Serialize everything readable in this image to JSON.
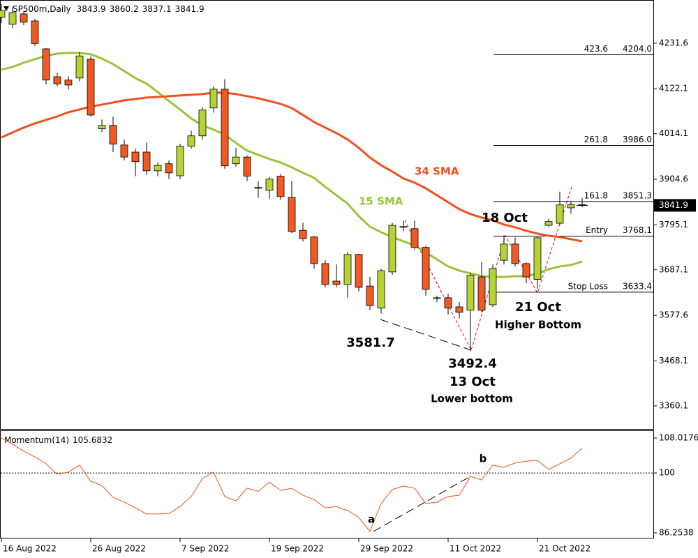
{
  "chart_data": {
    "type": "candlestick",
    "symbol": "SP500m,Daily",
    "categories": [
      "16 Aug 2022",
      null,
      null,
      null,
      null,
      null,
      null,
      null,
      "26 Aug 2022",
      null,
      null,
      null,
      null,
      null,
      null,
      null,
      "7 Sep 2022",
      null,
      null,
      null,
      null,
      null,
      null,
      null,
      "19 Sep 2022",
      null,
      null,
      null,
      null,
      null,
      null,
      null,
      "29 Sep 2022",
      null,
      null,
      null,
      null,
      null,
      null,
      null,
      "11 Oct 2022",
      null,
      null,
      null,
      null,
      null,
      null,
      null,
      "21 Oct 2022",
      null,
      null,
      null,
      null
    ],
    "open": [
      4293.6,
      4276.9,
      4302,
      4285,
      4218,
      4151,
      4143,
      4148,
      4193,
      4026,
      4034,
      3987,
      3970,
      3970,
      3925,
      3942,
      3913,
      3984,
      4009,
      4076,
      4121,
      3942,
      3958,
      3885,
      3878,
      3912,
      3861,
      3782,
      3766,
      3702,
      3660,
      3652,
      3724,
      3648,
      3595,
      3682,
      3791,
      3786,
      3741,
      3618,
      3620,
      3598,
      3590,
      3670,
      3603,
      3710,
      3749,
      3702,
      3664,
      3794,
      3799,
      3836,
      3843.9
    ],
    "high": [
      4325,
      4318,
      4308,
      4290,
      4220,
      4160,
      4152,
      4210,
      4200,
      4048,
      4055,
      4000,
      3978,
      3993,
      3945,
      3950,
      3990,
      4022,
      4078,
      4128,
      4145,
      3980,
      3962,
      3900,
      3910,
      3917,
      3900,
      3800,
      3768,
      3710,
      3700,
      3730,
      3726,
      3670,
      3690,
      3800,
      3805,
      3805,
      3745,
      3625,
      3630,
      3610,
      3680,
      3705,
      3700,
      3770,
      3765,
      3705,
      3766,
      3810,
      3875,
      3852,
      3860.2
    ],
    "low": [
      4280,
      4268,
      4275,
      4225,
      4132,
      4128,
      4120,
      4140,
      4055,
      4018,
      3970,
      3950,
      3912,
      3915,
      3912,
      3905,
      3905,
      3978,
      4000,
      4065,
      3930,
      3935,
      3900,
      3860,
      3858,
      3855,
      3775,
      3755,
      3690,
      3645,
      3645,
      3620,
      3635,
      3590,
      3581.7,
      3675,
      3780,
      3735,
      3625,
      3610,
      3580,
      3570,
      3492.4,
      3585,
      3598,
      3700,
      3695,
      3655,
      3642,
      3790,
      3795,
      3822,
      3837.1
    ],
    "close": [
      4310.4,
      4305,
      4282,
      4231,
      4143,
      4134,
      4131,
      4201,
      4059,
      4034,
      3989,
      3958,
      3947,
      3925,
      3938,
      3920,
      3984,
      4009,
      4071,
      4121,
      3937,
      3958,
      3912,
      3883,
      3905,
      3863,
      3779,
      3762,
      3702,
      3652,
      3652,
      3724,
      3645,
      3601,
      3685,
      3794,
      3790,
      3741,
      3640,
      3620,
      3595,
      3585,
      3674,
      3590,
      3690,
      3749,
      3702,
      3670,
      3764,
      3803,
      3843,
      3844,
      3841.9
    ],
    "up_color": "#b5d334",
    "down_color": "#f05a22",
    "ylim": [
      3303,
      4332
    ],
    "yticks": [
      4231.6,
      4122.1,
      4014.1,
      3904.6,
      3795.1,
      3687.1,
      3577.6,
      3468.1,
      3360.1
    ],
    "sma": [
      {
        "name": "15 SMA",
        "color": "#9ac33a",
        "values": [
          4167.9,
          4174.6,
          4184.7,
          4193.1,
          4201.4,
          4206.5,
          4208.1,
          4208.1,
          4204.8,
          4194.7,
          4181.3,
          4164.6,
          4147.8,
          4134.4,
          4114.3,
          4092.5,
          4072.4,
          4050.6,
          4033.8,
          4023.8,
          4012,
          3991.9,
          3973.5,
          3963.4,
          3953.4,
          3945,
          3933.3,
          3919.9,
          3908.1,
          3886.3,
          3866.2,
          3846.1,
          3816,
          3790.8,
          3777.4,
          3765.7,
          3755.6,
          3745.6,
          3728.8,
          3712,
          3695.3,
          3685.2,
          3678.5,
          3671.8,
          3670.1,
          3670.1,
          3671.8,
          3671.8,
          3678.5,
          3688.6,
          3695.3,
          3698.6,
          3707
        ]
      },
      {
        "name": "34 SMA",
        "color": "#f0501e",
        "values": [
          4005.3,
          4017.1,
          4028.8,
          4038.9,
          4047.2,
          4055.6,
          4065.7,
          4072.4,
          4079.1,
          4084.1,
          4089.1,
          4094.2,
          4097.5,
          4100.9,
          4102.5,
          4104.2,
          4105.9,
          4107.6,
          4109.3,
          4112.6,
          4112.6,
          4109.3,
          4104.2,
          4099.2,
          4092.5,
          4085.8,
          4075.7,
          4059,
          4042.2,
          4028.8,
          4015.4,
          4000.3,
          3980.2,
          3956.7,
          3938.3,
          3923.2,
          3906.5,
          3896.4,
          3883,
          3866.2,
          3849.5,
          3832.7,
          3821,
          3812.6,
          3805.9,
          3795.8,
          3789.1,
          3780.8,
          3774.1,
          3769,
          3765.7,
          3760.6,
          3755.6
        ]
      }
    ],
    "levels": [
      {
        "name": "423.6",
        "value": 4204,
        "value_label": "4204.0"
      },
      {
        "name": "261.8",
        "value": 3986,
        "value_label": "3986.0"
      },
      {
        "name": "161.8",
        "value": 3851.3,
        "value_label": "3851.3"
      },
      {
        "name": "Entry",
        "value": 3768.1,
        "value_label": "3768.1"
      },
      {
        "name": "Stop Loss",
        "value": 3633.4,
        "value_label": "3633.4"
      }
    ],
    "annotations": [
      "18 Oct",
      "13 Oct",
      "Lower bottom",
      "21 Oct",
      "Higher Bottom"
    ],
    "momentum": {
      "name": "Momentum(14)",
      "color": "#f0501e",
      "values": [
        108.0,
        106.6,
        105.0,
        103.7,
        102.1,
        99.7,
        100.2,
        101.8,
        98.1,
        97.1,
        94.4,
        93.3,
        92.0,
        90.6,
        90.6,
        90.7,
        92.3,
        94.6,
        98.7,
        100.2,
        94.6,
        93.6,
        96.5,
        95.8,
        97.9,
        96.0,
        96.5,
        94.9,
        93.9,
        92.0,
        92.3,
        91.4,
        89.8,
        86.6,
        93.0,
        96.2,
        97.0,
        96.5,
        93.0,
        93.3,
        94.6,
        94.9,
        99.2,
        98.4,
        101.8,
        101.3,
        102.3,
        102.7,
        102.9,
        100.8,
        102.1,
        103.4,
        105.6832
      ],
      "ylim": [
        84.974,
        109.618
      ],
      "yticks": [
        108.0176,
        100,
        86.2538
      ],
      "levels": [
        100
      ],
      "annotations": [
        "a",
        "b"
      ]
    }
  }
}
